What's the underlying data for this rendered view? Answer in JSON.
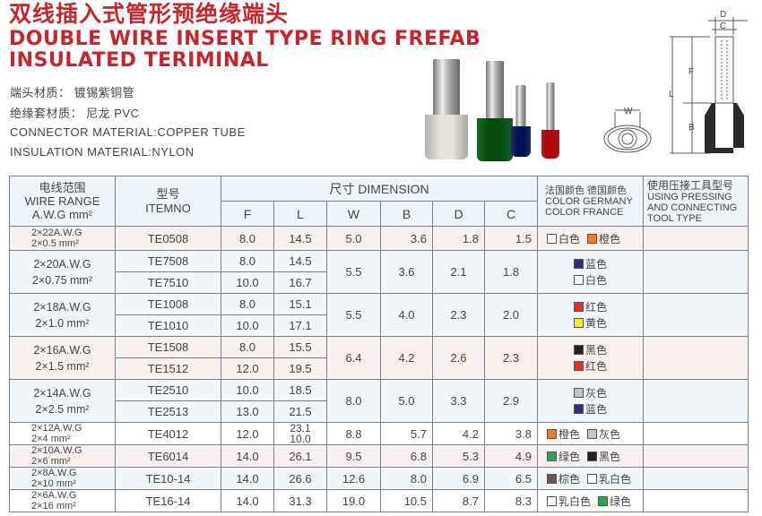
{
  "header": {
    "title_zh": "双线插入式管形预绝缘端头",
    "title_en_line1": "DOUBLE WIRE INSERT TYPE RING FREFAB",
    "title_en_line2": "INSULATED TERIMINAL"
  },
  "specs": [
    "端头材质：  镀锡紫铜管",
    "绝缘套材质：  尼龙    PVC",
    "CONNECTOR MATERIAL:COPPER TUBE",
    "INSULATION MATERIAL:NYLON"
  ],
  "diagram": {
    "labels": {
      "D": "D",
      "C": "C",
      "F": "F",
      "L": "L",
      "B": "B",
      "W": "W"
    }
  },
  "photo_colors": [
    "#f2f0ea",
    "#1f8a3a",
    "#1f3f8f",
    "#d8262a"
  ],
  "table": {
    "headers": {
      "wire_range_zh": "电线范围",
      "wire_range_en": "WIRE RANGE",
      "wire_range_unit": "A.W.G  mm²",
      "item_zh": "型号",
      "item_en": "ITEMNO",
      "dimension": "尺寸 DIMENSION",
      "cols": [
        "F",
        "L",
        "W",
        "B",
        "D",
        "C"
      ],
      "color_zh": "法国颜色 德国颜色",
      "color_en1": "COLOR GERMANY",
      "color_en2": "COLOR    FRANCE",
      "tool_zh": "使用压接工具型号",
      "tool_en": "USING PRESSING AND CONNECTING TOOL TYPE"
    },
    "groups": [
      {
        "range": [
          "2×22A.W.G",
          "2×0.5 mm²"
        ],
        "small": true,
        "bg": "pink",
        "items": [
          {
            "item": "TE0508",
            "F": "8.0",
            "L": "14.5"
          }
        ],
        "W": "5.0",
        "B": "3.6",
        "D": "1.8",
        "C": "1.5",
        "layout": "inline",
        "colors": [
          {
            "label": "白色",
            "color": "#ffffff"
          },
          {
            "label": "橙色",
            "color": "#f07a2a"
          }
        ]
      },
      {
        "range": [
          "2×20A.W.G",
          "2×0.75 mm²"
        ],
        "bg": "blue",
        "items": [
          {
            "item": "TE7508",
            "F": "8.0",
            "L": "14.5"
          },
          {
            "item": "TE7510",
            "F": "10.0",
            "L": "16.7"
          }
        ],
        "W": "5.5",
        "B": "3.6",
        "D": "2.1",
        "C": "1.8",
        "layout": "stack",
        "colors": [
          {
            "label": "蓝色",
            "color": "#2e2f7f"
          },
          {
            "label": "白色",
            "color": "#ffffff"
          }
        ]
      },
      {
        "range": [
          "2×18A.W.G",
          "2×1.0 mm²"
        ],
        "bg": "blue",
        "items": [
          {
            "item": "TE1008",
            "F": "8.0",
            "L": "15.1"
          },
          {
            "item": "TE1010",
            "F": "10.0",
            "L": "17.1"
          }
        ],
        "W": "5.5",
        "B": "4.0",
        "D": "2.3",
        "C": "2.0",
        "layout": "stack",
        "colors": [
          {
            "label": "红色",
            "color": "#e8302c"
          },
          {
            "label": "黄色",
            "color": "#f5ea2a"
          }
        ]
      },
      {
        "range": [
          "2×16A.W.G",
          "2×1.5 mm²"
        ],
        "bg": "pink",
        "items": [
          {
            "item": "TE1508",
            "F": "8.0",
            "L": "15.5"
          },
          {
            "item": "TE1512",
            "F": "12.0",
            "L": "19.5"
          }
        ],
        "W": "6.4",
        "B": "4.2",
        "D": "2.6",
        "C": "2.3",
        "layout": "stack",
        "colors": [
          {
            "label": "黑色",
            "color": "#222222"
          },
          {
            "label": "红色",
            "color": "#e8302c"
          }
        ]
      },
      {
        "range": [
          "2×14A.W.G",
          "2×2.5 mm²"
        ],
        "bg": "blue",
        "items": [
          {
            "item": "TE2510",
            "F": "10.0",
            "L": "18.5"
          },
          {
            "item": "TE2513",
            "F": "13.0",
            "L": "21.5"
          }
        ],
        "W": "8.0",
        "B": "5.0",
        "D": "3.3",
        "C": "2.9",
        "layout": "stack",
        "colors": [
          {
            "label": "灰色",
            "color": "#c4c4c8"
          },
          {
            "label": "蓝色",
            "color": "#2e2f7f"
          }
        ]
      },
      {
        "range": [
          "2×12A.W.G",
          "2×4 mm²"
        ],
        "small": true,
        "bg": "white",
        "items": [
          {
            "item": "TE4012",
            "F": "12.0",
            "L": [
              "23.1",
              "10.0"
            ]
          }
        ],
        "W": "8.8",
        "B": "5.7",
        "D": "4.2",
        "C": "3.8",
        "layout": "inline",
        "colors": [
          {
            "label": "橙色",
            "color": "#f07a2a"
          },
          {
            "label": "灰色",
            "color": "#c4c4c8"
          }
        ]
      },
      {
        "range": [
          "2×10A.W.G",
          "2×6 mm²"
        ],
        "small": true,
        "bg": "pink",
        "items": [
          {
            "item": "TE6014",
            "F": "14.0",
            "L": "26.1"
          }
        ],
        "W": "9.5",
        "B": "6.8",
        "D": "5.3",
        "C": "4.9",
        "layout": "inline",
        "colors": [
          {
            "label": "绿色",
            "color": "#2fa34a"
          },
          {
            "label": "黑色",
            "color": "#222222"
          }
        ]
      },
      {
        "range": [
          "2×8A.W.G",
          "2×10 mm²"
        ],
        "small": true,
        "bg": "blue",
        "items": [
          {
            "item": "TE10-14",
            "F": "14.0",
            "L": "26.6"
          }
        ],
        "W": "12.6",
        "B": "8.0",
        "D": "6.9",
        "C": "6.5",
        "layout": "inline",
        "colors": [
          {
            "label": "棕色",
            "color": "#6b5552"
          },
          {
            "label": "乳白色",
            "color": "#ffffff"
          }
        ]
      },
      {
        "range": [
          "2×6A.W.G",
          "2×16 mm²"
        ],
        "small": true,
        "bg": "white",
        "items": [
          {
            "item": "TE16-14",
            "F": "14.0",
            "L": "31.3"
          }
        ],
        "W": "19.0",
        "B": "10.5",
        "D": "8.7",
        "C": "8.3",
        "layout": "inline",
        "colors": [
          {
            "label": "乳白色",
            "color": "#ffffff"
          },
          {
            "label": "绿色",
            "color": "#2fa34a"
          }
        ]
      }
    ]
  }
}
